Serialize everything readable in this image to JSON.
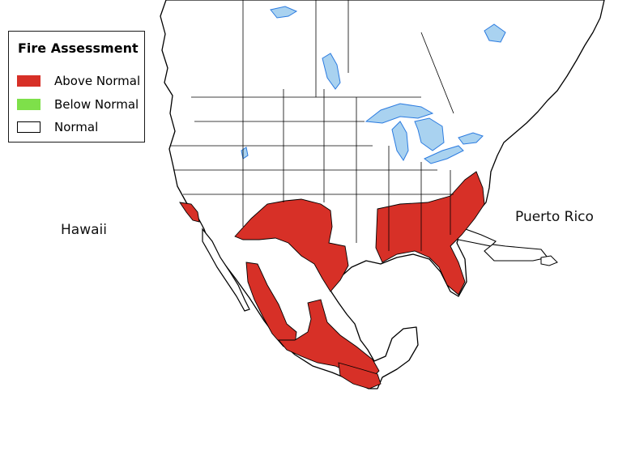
{
  "legend": {
    "title": "Fire Assessment",
    "items": [
      {
        "label": "Above Normal",
        "color": "#d73027"
      },
      {
        "label": "Below Normal",
        "color": "#7ee04a"
      },
      {
        "label": "Normal",
        "color": "#ffffff"
      }
    ]
  },
  "labels": {
    "hawaii": "Hawaii",
    "puerto_rico": "Puerto Rico"
  },
  "colors": {
    "above_normal": "#d73027",
    "boundary": "#000000",
    "water": "#a9d2f0",
    "water_outline": "#2b7be0"
  }
}
